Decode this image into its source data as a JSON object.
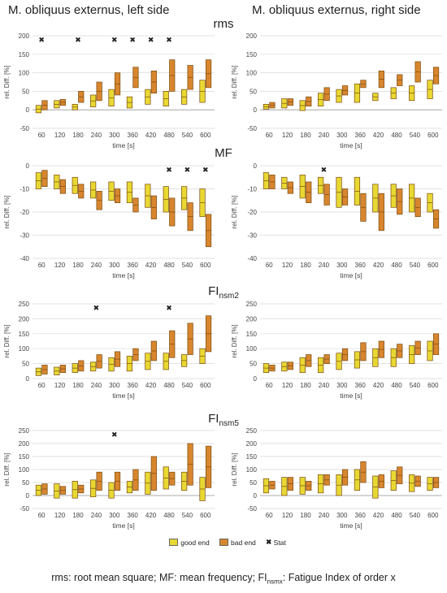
{
  "column_titles": [
    "M. obliquus externus, left side",
    "M. obliquus externus, right side"
  ],
  "row_titles": [
    {
      "main": "rms",
      "sub": ""
    },
    {
      "main": "MF",
      "sub": ""
    },
    {
      "main": "FI",
      "sub": "nsm2"
    },
    {
      "main": "FI",
      "sub": "nsm5"
    }
  ],
  "legend": {
    "good": "good end",
    "bad": "bad end",
    "stat": "Stat",
    "colors": {
      "good": "#e8d832",
      "bad": "#d8862e",
      "border": "#7a4a10"
    }
  },
  "footnote": {
    "p1": "rms: root mean square; MF: mean frequency; FI",
    "sub": "nsmx",
    "p2": ": Fatigue Index of order x"
  },
  "chart_data": [
    {
      "type": "box",
      "measure": "rms",
      "side": "left",
      "xlabel": "time [s]",
      "ylabel": "rel. Diff. [%]",
      "yticks": [
        -50,
        0,
        50,
        100,
        150,
        200
      ],
      "ylim": [
        -50,
        200
      ],
      "categories": [
        "60",
        "120",
        "180",
        "240",
        "300",
        "360",
        "420",
        "480",
        "540",
        "600"
      ],
      "series": [
        {
          "name": "good end",
          "values": [
            [
              -8,
              12
            ],
            [
              5,
              25
            ],
            [
              0,
              15
            ],
            [
              8,
              40
            ],
            [
              10,
              55
            ],
            [
              5,
              35
            ],
            [
              15,
              55
            ],
            [
              10,
              50
            ],
            [
              15,
              55
            ],
            [
              20,
              80
            ]
          ]
        },
        {
          "name": "bad end",
          "values": [
            [
              0,
              25
            ],
            [
              12,
              28
            ],
            [
              20,
              50
            ],
            [
              25,
              75
            ],
            [
              40,
              100
            ],
            [
              60,
              115
            ],
            [
              45,
              105
            ],
            [
              50,
              135
            ],
            [
              55,
              120
            ],
            [
              60,
              135
            ]
          ]
        }
      ],
      "stat": [
        "60",
        "180",
        "300",
        "360",
        "420",
        "480"
      ]
    },
    {
      "type": "box",
      "measure": "rms",
      "side": "right",
      "xlabel": "time [s]",
      "ylabel": "rel. Diff. [%]",
      "yticks": [
        -50,
        0,
        50,
        100,
        150,
        200
      ],
      "ylim": [
        -50,
        200
      ],
      "categories": [
        "60",
        "120",
        "180",
        "240",
        "300",
        "360",
        "420",
        "480",
        "540",
        "600"
      ],
      "series": [
        {
          "name": "good end",
          "values": [
            [
              2,
              15
            ],
            [
              5,
              30
            ],
            [
              -2,
              25
            ],
            [
              10,
              45
            ],
            [
              20,
              55
            ],
            [
              20,
              70
            ],
            [
              25,
              45
            ],
            [
              30,
              60
            ],
            [
              25,
              65
            ],
            [
              30,
              80
            ]
          ]
        },
        {
          "name": "bad end",
          "values": [
            [
              5,
              20
            ],
            [
              12,
              30
            ],
            [
              10,
              35
            ],
            [
              25,
              60
            ],
            [
              40,
              65
            ],
            [
              60,
              80
            ],
            [
              60,
              105
            ],
            [
              65,
              95
            ],
            [
              75,
              130
            ],
            [
              70,
              115
            ]
          ]
        }
      ],
      "stat": []
    },
    {
      "type": "box",
      "measure": "MF",
      "side": "left",
      "xlabel": "time [s]",
      "ylabel": "rel. Diff. [%]",
      "yticks": [
        -40,
        -30,
        -20,
        -10,
        0
      ],
      "ylim": [
        -40,
        0
      ],
      "categories": [
        "60",
        "120",
        "180",
        "240",
        "300",
        "360",
        "420",
        "480",
        "540",
        "600"
      ],
      "series": [
        {
          "name": "good end",
          "values": [
            [
              -10,
              -3
            ],
            [
              -10,
              -4
            ],
            [
              -12,
              -5
            ],
            [
              -14,
              -7
            ],
            [
              -15,
              -7
            ],
            [
              -16,
              -7
            ],
            [
              -18,
              -8
            ],
            [
              -20,
              -9
            ],
            [
              -19,
              -9
            ],
            [
              -22,
              -10
            ]
          ]
        },
        {
          "name": "bad end",
          "values": [
            [
              -9,
              -2
            ],
            [
              -12,
              -6
            ],
            [
              -14,
              -8
            ],
            [
              -19,
              -11
            ],
            [
              -16,
              -10
            ],
            [
              -20,
              -14
            ],
            [
              -23,
              -13
            ],
            [
              -26,
              -14
            ],
            [
              -28,
              -16
            ],
            [
              -35,
              -21
            ]
          ]
        }
      ],
      "stat": [
        "480",
        "540",
        "600"
      ]
    },
    {
      "type": "box",
      "measure": "MF",
      "side": "right",
      "xlabel": "time [s]",
      "ylabel": "rel. Diff. [%]",
      "yticks": [
        -40,
        -30,
        -20,
        -10,
        0
      ],
      "ylim": [
        -40,
        0
      ],
      "categories": [
        "60",
        "120",
        "180",
        "240",
        "300",
        "360",
        "420",
        "480",
        "540",
        "600"
      ],
      "series": [
        {
          "name": "good end",
          "values": [
            [
              -10,
              -3
            ],
            [
              -10,
              -5
            ],
            [
              -14,
              -4
            ],
            [
              -12,
              -5
            ],
            [
              -18,
              -5
            ],
            [
              -17,
              -5
            ],
            [
              -20,
              -8
            ],
            [
              -18,
              -8
            ],
            [
              -20,
              -8
            ],
            [
              -20,
              -12
            ]
          ]
        },
        {
          "name": "bad end",
          "values": [
            [
              -10,
              -4
            ],
            [
              -12,
              -7
            ],
            [
              -16,
              -7
            ],
            [
              -17,
              -8
            ],
            [
              -17,
              -10
            ],
            [
              -24,
              -12
            ],
            [
              -28,
              -12
            ],
            [
              -21,
              -10
            ],
            [
              -22,
              -14
            ],
            [
              -27,
              -19
            ]
          ]
        }
      ],
      "stat": [
        "240"
      ]
    },
    {
      "type": "box",
      "measure": "FInsm2",
      "side": "left",
      "xlabel": "time [s]",
      "ylabel": "rel. Diff. [%]",
      "yticks": [
        0,
        50,
        100,
        150,
        200,
        250
      ],
      "ylim": [
        0,
        250
      ],
      "categories": [
        "60",
        "120",
        "180",
        "240",
        "300",
        "360",
        "420",
        "480",
        "540",
        "600"
      ],
      "series": [
        {
          "name": "good end",
          "values": [
            [
              10,
              35
            ],
            [
              12,
              38
            ],
            [
              20,
              50
            ],
            [
              25,
              55
            ],
            [
              25,
              70
            ],
            [
              25,
              75
            ],
            [
              30,
              85
            ],
            [
              30,
              85
            ],
            [
              40,
              80
            ],
            [
              50,
              100
            ]
          ]
        },
        {
          "name": "bad end",
          "values": [
            [
              15,
              45
            ],
            [
              20,
              45
            ],
            [
              25,
              60
            ],
            [
              35,
              80
            ],
            [
              40,
              90
            ],
            [
              60,
              100
            ],
            [
              60,
              125
            ],
            [
              70,
              160
            ],
            [
              80,
              185
            ],
            [
              90,
              210
            ]
          ]
        }
      ],
      "stat": [
        "240",
        "480"
      ]
    },
    {
      "type": "box",
      "measure": "FInsm2",
      "side": "right",
      "xlabel": "time [s]",
      "ylabel": "rel. Diff. [%]",
      "yticks": [
        0,
        50,
        100,
        150,
        200,
        250
      ],
      "ylim": [
        0,
        250
      ],
      "categories": [
        "60",
        "120",
        "180",
        "240",
        "300",
        "360",
        "420",
        "480",
        "540",
        "600"
      ],
      "series": [
        {
          "name": "good end",
          "values": [
            [
              20,
              50
            ],
            [
              25,
              55
            ],
            [
              20,
              70
            ],
            [
              20,
              70
            ],
            [
              30,
              85
            ],
            [
              35,
              90
            ],
            [
              40,
              100
            ],
            [
              40,
              100
            ],
            [
              50,
              110
            ],
            [
              60,
              125
            ]
          ]
        },
        {
          "name": "bad end",
          "values": [
            [
              25,
              45
            ],
            [
              30,
              55
            ],
            [
              40,
              80
            ],
            [
              50,
              80
            ],
            [
              60,
              100
            ],
            [
              60,
              120
            ],
            [
              70,
              125
            ],
            [
              70,
              115
            ],
            [
              80,
              125
            ],
            [
              80,
              150
            ]
          ]
        }
      ],
      "stat": []
    },
    {
      "type": "box",
      "measure": "FInsm5",
      "side": "left",
      "xlabel": "time [s]",
      "ylabel": "rel. Diff. [%]",
      "yticks": [
        -50,
        0,
        50,
        100,
        150,
        200,
        250
      ],
      "ylim": [
        -50,
        250
      ],
      "categories": [
        "60",
        "120",
        "180",
        "240",
        "300",
        "360",
        "420",
        "480",
        "540",
        "600"
      ],
      "series": [
        {
          "name": "good end",
          "values": [
            [
              0,
              40
            ],
            [
              -10,
              45
            ],
            [
              -10,
              55
            ],
            [
              -5,
              60
            ],
            [
              -10,
              50
            ],
            [
              10,
              55
            ],
            [
              5,
              90
            ],
            [
              25,
              110
            ],
            [
              20,
              90
            ],
            [
              -20,
              70
            ]
          ]
        },
        {
          "name": "bad end",
          "values": [
            [
              5,
              45
            ],
            [
              5,
              35
            ],
            [
              10,
              40
            ],
            [
              20,
              90
            ],
            [
              20,
              90
            ],
            [
              20,
              100
            ],
            [
              20,
              150
            ],
            [
              40,
              90
            ],
            [
              40,
              200
            ],
            [
              30,
              190
            ]
          ]
        }
      ],
      "stat": [
        "300"
      ]
    },
    {
      "type": "box",
      "measure": "FInsm5",
      "side": "right",
      "xlabel": "time [s]",
      "ylabel": "rel. Diff. [%]",
      "yticks": [
        -50,
        0,
        50,
        100,
        150,
        200,
        250
      ],
      "ylim": [
        -50,
        250
      ],
      "categories": [
        "60",
        "120",
        "180",
        "240",
        "300",
        "360",
        "420",
        "480",
        "540",
        "600"
      ],
      "series": [
        {
          "name": "good end",
          "values": [
            [
              10,
              65
            ],
            [
              0,
              70
            ],
            [
              5,
              70
            ],
            [
              10,
              80
            ],
            [
              0,
              80
            ],
            [
              20,
              100
            ],
            [
              -10,
              75
            ],
            [
              20,
              95
            ],
            [
              15,
              80
            ],
            [
              20,
              70
            ]
          ]
        },
        {
          "name": "bad end",
          "values": [
            [
              25,
              55
            ],
            [
              20,
              70
            ],
            [
              20,
              55
            ],
            [
              40,
              80
            ],
            [
              40,
              100
            ],
            [
              50,
              130
            ],
            [
              30,
              80
            ],
            [
              45,
              110
            ],
            [
              35,
              75
            ],
            [
              30,
              70
            ]
          ]
        }
      ],
      "stat": []
    }
  ]
}
